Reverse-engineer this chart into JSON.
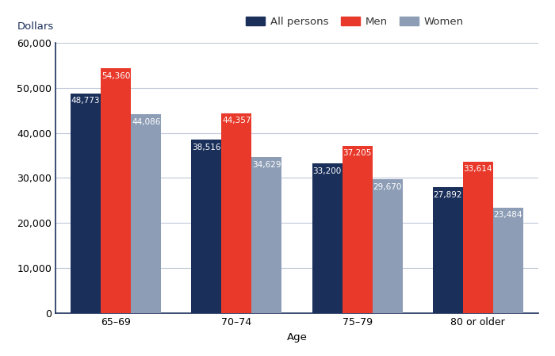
{
  "categories": [
    "65–69",
    "70–74",
    "75–79",
    "80 or older"
  ],
  "series": {
    "All persons": [
      48773,
      38516,
      33200,
      27892
    ],
    "Men": [
      54360,
      44357,
      37205,
      33614
    ],
    "Women": [
      44086,
      34629,
      29670,
      23484
    ]
  },
  "colors": {
    "All persons": "#1a2f5a",
    "Men": "#e8392a",
    "Women": "#8c9db5"
  },
  "legend_order": [
    "All persons",
    "Men",
    "Women"
  ],
  "xlabel": "Age",
  "ylabel": "Dollars",
  "ylim": [
    0,
    60000
  ],
  "yticks": [
    0,
    10000,
    20000,
    30000,
    40000,
    50000,
    60000
  ],
  "bar_width": 0.25,
  "title": "",
  "label_fontsize": 7.5,
  "axis_label_fontsize": 9.5,
  "tick_fontsize": 9,
  "legend_fontsize": 9.5,
  "background_color": "#ffffff",
  "grid_color": "#c0c8d8",
  "spine_color": "#1a2f5a"
}
